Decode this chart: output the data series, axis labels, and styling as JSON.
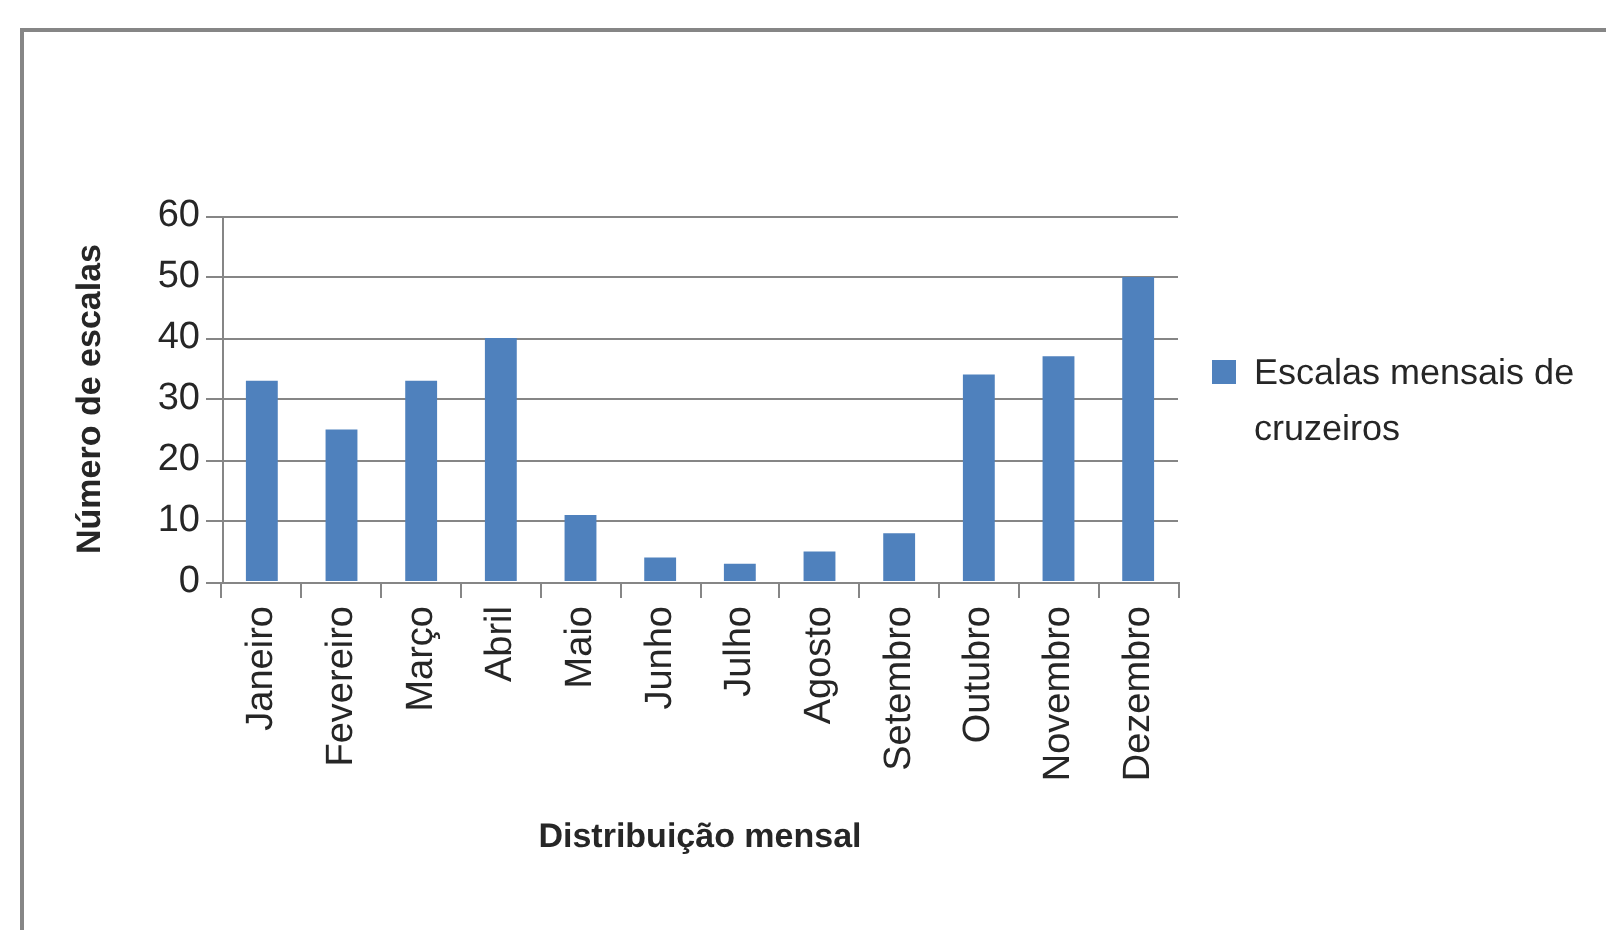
{
  "chart_data": {
    "type": "bar",
    "xlabel": "Distribuição mensal",
    "ylabel": "Número de escalas",
    "categories": [
      "Janeiro",
      "Fevereiro",
      "Março",
      "Abril",
      "Maio",
      "Junho",
      "Julho",
      "Agosto",
      "Setembro",
      "Outubro",
      "Novembro",
      "Dezembro"
    ],
    "series": [
      {
        "name": "Escalas mensais de cruzeiros",
        "color": "#4f81bd",
        "values": [
          33,
          25,
          33,
          40,
          11,
          4,
          3,
          5,
          8,
          34,
          37,
          50
        ]
      }
    ],
    "ylim": [
      0,
      60
    ],
    "yticks": [
      0,
      10,
      20,
      30,
      40,
      50,
      60
    ],
    "grid": "y",
    "legend": "right"
  }
}
